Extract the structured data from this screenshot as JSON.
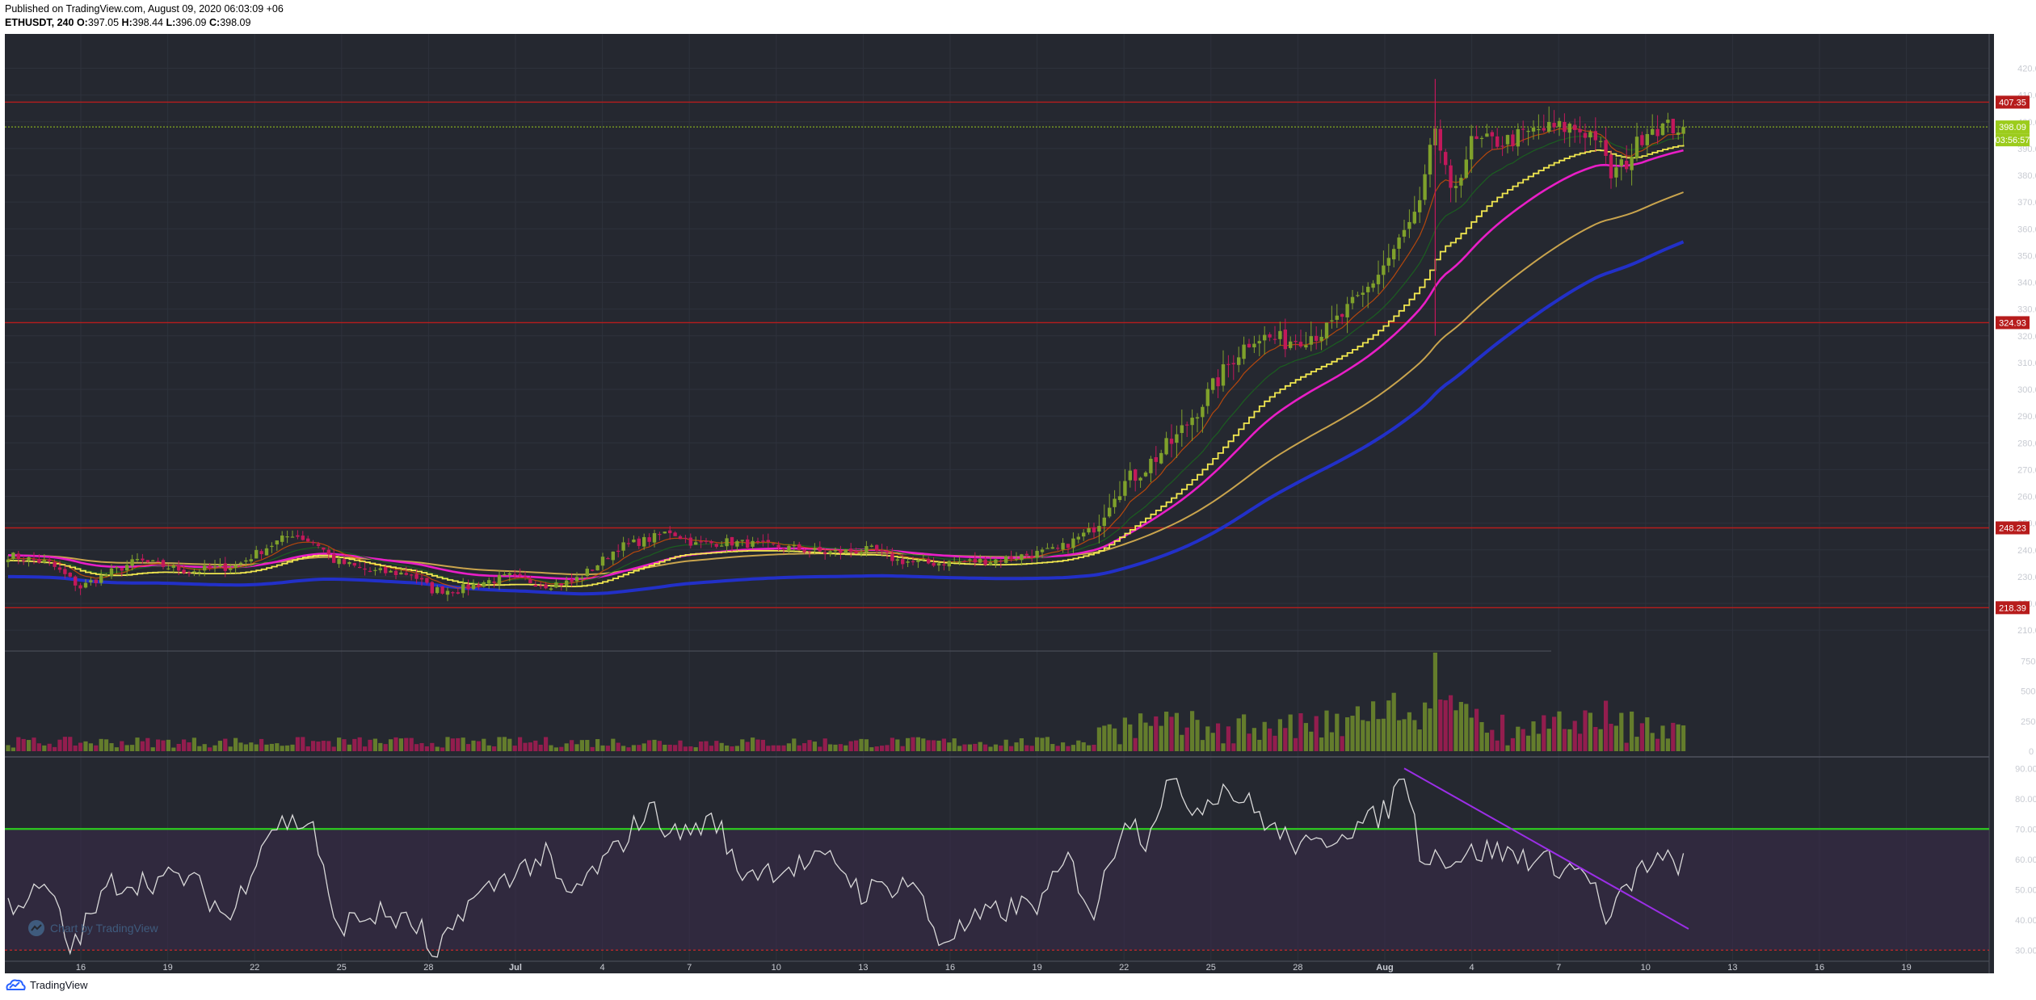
{
  "header": {
    "published": "Published on TradingView.com, August 09, 2020 06:03:09 +06",
    "symbol": "ETHUSDT, 240",
    "ohlc": {
      "o_label": "O:",
      "o": "397.05",
      "h_label": "H:",
      "h": "398.44",
      "l_label": "L:",
      "l": "396.09",
      "c_label": "C:",
      "c": "398.09"
    }
  },
  "footer": {
    "brand": "TradingView"
  },
  "watermark": "Chart by TradingView",
  "colors": {
    "background": "#252830",
    "candle_up": "#7fa12b",
    "candle_down": "#c2185b",
    "level_line": "#b71c1c",
    "last_price_line": "#9ccc1c",
    "ema_fast": "#e65100",
    "ema_mid": "#1b5e20",
    "psar": "#f2e84f",
    "ma_magenta": "#e91ec7",
    "ma_tan": "#c9a44d",
    "ma_blue": "#2230c8",
    "rsi_line": "#d9d9d9",
    "rsi_70": "#2ecc1f",
    "rsi_30": "#c62828",
    "trendline": "#9b2ee6"
  },
  "chart_data": [
    {
      "type": "candlestick",
      "symbol": "ETHUSDT",
      "timeframe": "240",
      "x_ticks": [
        "16",
        "19",
        "22",
        "25",
        "28",
        "Jul",
        "4",
        "7",
        "10",
        "13",
        "16",
        "19",
        "22",
        "25",
        "28",
        "Aug",
        "4",
        "7",
        "10",
        "13",
        "16",
        "19"
      ],
      "y_ticks": [
        210,
        220,
        230,
        240,
        250,
        260,
        270,
        280,
        290,
        300,
        310,
        320,
        330,
        340,
        350,
        360,
        370,
        380,
        390,
        400,
        410,
        420
      ],
      "ylim": [
        204,
        425
      ],
      "price_tags": [
        "407.35",
        "398.09",
        "03:56:57",
        "324.93",
        "248.23",
        "218.39"
      ],
      "horizontal_levels": [
        407.35,
        324.93,
        248.23,
        218.39
      ],
      "last_price": 398.09,
      "countdown": "03:56:57",
      "close_anchors": [
        [
          0,
          238
        ],
        [
          8,
          235
        ],
        [
          14,
          226
        ],
        [
          18,
          230
        ],
        [
          25,
          236
        ],
        [
          35,
          232
        ],
        [
          44,
          234
        ],
        [
          50,
          241
        ],
        [
          55,
          246
        ],
        [
          60,
          242
        ],
        [
          63,
          236
        ],
        [
          70,
          232
        ],
        [
          78,
          231
        ],
        [
          82,
          225
        ],
        [
          87,
          225
        ],
        [
          92,
          228
        ],
        [
          97,
          230
        ],
        [
          104,
          227
        ],
        [
          109,
          228
        ],
        [
          113,
          233
        ],
        [
          118,
          241
        ],
        [
          124,
          244
        ],
        [
          128,
          247
        ],
        [
          133,
          242
        ],
        [
          139,
          243
        ],
        [
          150,
          241
        ],
        [
          158,
          239
        ],
        [
          167,
          240
        ],
        [
          172,
          236
        ],
        [
          178,
          235
        ],
        [
          190,
          236
        ],
        [
          203,
          240
        ],
        [
          210,
          248
        ],
        [
          214,
          262
        ],
        [
          220,
          271
        ],
        [
          226,
          282
        ],
        [
          232,
          298
        ],
        [
          237,
          312
        ],
        [
          241,
          320
        ],
        [
          247,
          318
        ],
        [
          255,
          322
        ],
        [
          262,
          335
        ],
        [
          268,
          352
        ],
        [
          273,
          368
        ],
        [
          276,
          398
        ],
        [
          279,
          372
        ],
        [
          283,
          392
        ],
        [
          290,
          393
        ],
        [
          296,
          397
        ],
        [
          302,
          398
        ],
        [
          307,
          395
        ],
        [
          310,
          380
        ],
        [
          313,
          385
        ],
        [
          317,
          398
        ]
      ],
      "volume": {
        "y_ticks": [
          "0",
          "250K",
          "500K",
          "750K"
        ],
        "max": 840000
      },
      "rsi": {
        "y_ticks": [
          "30.0000",
          "40.0000",
          "50.0000",
          "60.0000",
          "70.0000",
          "80.0000",
          "90.0000"
        ],
        "ylim": [
          25,
          93
        ],
        "upper": 70,
        "lower": 30,
        "anchors": [
          [
            0,
            45
          ],
          [
            8,
            50
          ],
          [
            12,
            30
          ],
          [
            20,
            52
          ],
          [
            35,
            54
          ],
          [
            43,
            40
          ],
          [
            49,
            66
          ],
          [
            52,
            72
          ],
          [
            59,
            72
          ],
          [
            63,
            38
          ],
          [
            72,
            42
          ],
          [
            80,
            37
          ],
          [
            82,
            24
          ],
          [
            88,
            44
          ],
          [
            97,
            55
          ],
          [
            104,
            61
          ],
          [
            108,
            47
          ],
          [
            117,
            62
          ],
          [
            124,
            77
          ],
          [
            129,
            68
          ],
          [
            137,
            73
          ],
          [
            141,
            56
          ],
          [
            150,
            57
          ],
          [
            160,
            60
          ],
          [
            165,
            49
          ],
          [
            175,
            53
          ],
          [
            180,
            33
          ],
          [
            190,
            42
          ],
          [
            200,
            46
          ],
          [
            205,
            60
          ],
          [
            210,
            42
          ],
          [
            216,
            75
          ],
          [
            220,
            67
          ],
          [
            224,
            85
          ],
          [
            230,
            77
          ],
          [
            235,
            84
          ],
          [
            240,
            78
          ],
          [
            246,
            68
          ],
          [
            252,
            63
          ],
          [
            258,
            70
          ],
          [
            263,
            72
          ],
          [
            267,
            77
          ],
          [
            270,
            90
          ],
          [
            273,
            63
          ],
          [
            279,
            60
          ],
          [
            286,
            63
          ],
          [
            293,
            61
          ],
          [
            300,
            58
          ],
          [
            306,
            55
          ],
          [
            309,
            38
          ],
          [
            313,
            50
          ],
          [
            317,
            59
          ]
        ]
      },
      "rsi_trendline": {
        "from": [
          270,
          90
        ],
        "to": [
          325,
          37
        ]
      }
    }
  ]
}
